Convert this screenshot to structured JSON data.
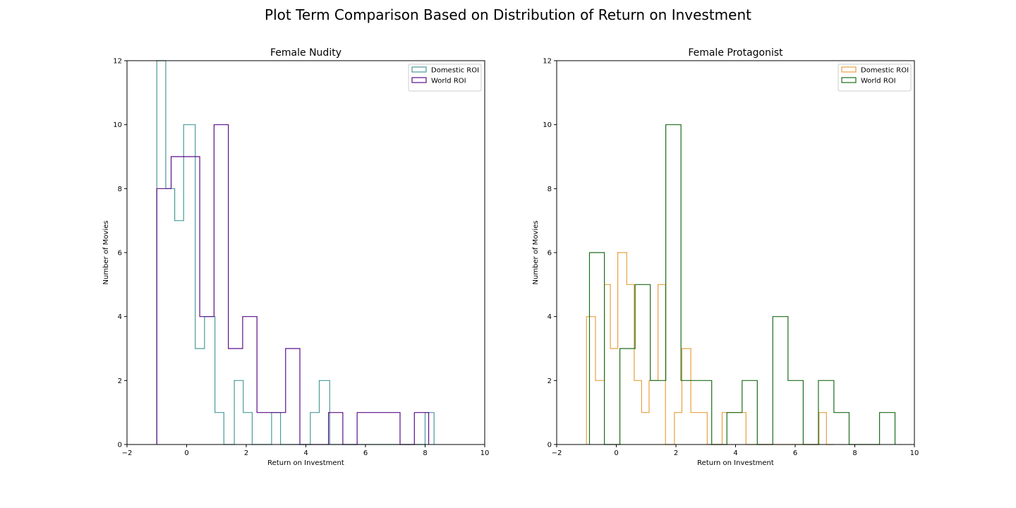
{
  "figure": {
    "suptitle": "Plot Term Comparison Based on Distribution of Return on Investment"
  },
  "chart_data": [
    {
      "type": "histogram",
      "title": "Female Nudity",
      "xlabel": "Return on Investment",
      "ylabel": "Number of Movies",
      "xlim": [
        -2,
        10
      ],
      "ylim": [
        0,
        12
      ],
      "xticks": [
        -2,
        0,
        2,
        4,
        6,
        8,
        10
      ],
      "yticks": [
        0,
        2,
        4,
        6,
        8,
        10,
        12
      ],
      "grid": false,
      "legend_position": "top-right",
      "series": [
        {
          "name": "Domestic ROI",
          "color": "#4a9a9a",
          "histtype": "step",
          "bin_edges": [
            -1.0,
            -0.7,
            -0.4,
            -0.1,
            0.29,
            0.6,
            0.95,
            1.25,
            1.6,
            1.9,
            2.2,
            2.5,
            2.85,
            3.15,
            3.5,
            3.8,
            4.15,
            4.45,
            4.8,
            5.1,
            5.45,
            5.75,
            6.1,
            6.4,
            6.75,
            7.05,
            7.35,
            7.7,
            8.0,
            8.3
          ],
          "counts": [
            12,
            8,
            7,
            10,
            3,
            4,
            1,
            0,
            2,
            1,
            0,
            0,
            1,
            0,
            0,
            0,
            1,
            2,
            0,
            0,
            0,
            0,
            0,
            0,
            0,
            0,
            0,
            0,
            1
          ]
        },
        {
          "name": "World ROI",
          "color": "#5a0f8a",
          "histtype": "step",
          "bin_edges": [
            -1.0,
            -0.52,
            0.44,
            0.92,
            1.4,
            1.88,
            2.36,
            2.84,
            3.32,
            3.8,
            4.28,
            4.76,
            5.24,
            5.72,
            6.2,
            6.68,
            7.16,
            7.64,
            8.12
          ],
          "counts": [
            8,
            9,
            4,
            10,
            3,
            4,
            1,
            1,
            3,
            0,
            0,
            1,
            0,
            1,
            1,
            1,
            0,
            1
          ]
        }
      ]
    },
    {
      "type": "histogram",
      "title": "Female Protagonist",
      "xlabel": "Return on Investment",
      "ylabel": "Number of Movies",
      "xlim": [
        -2,
        10
      ],
      "ylim": [
        0,
        12
      ],
      "xticks": [
        -2,
        0,
        2,
        4,
        6,
        8,
        10
      ],
      "yticks": [
        0,
        2,
        4,
        6,
        8,
        10,
        12
      ],
      "grid": false,
      "legend_position": "top-right",
      "series": [
        {
          "name": "Domestic ROI",
          "color": "#e8a040",
          "histtype": "step",
          "bin_edges": [
            -1.0,
            -0.7,
            -0.4,
            -0.2,
            0.05,
            0.35,
            0.6,
            0.85,
            1.1,
            1.4,
            1.65,
            1.95,
            2.2,
            2.5,
            2.75,
            3.05,
            3.3,
            3.55,
            3.85,
            4.1,
            4.35,
            6.8,
            7.05,
            7.3
          ],
          "counts": [
            4,
            2,
            5,
            3,
            6,
            5,
            2,
            1,
            2,
            5,
            0,
            1,
            3,
            1,
            1,
            0,
            0,
            1,
            1,
            1,
            0,
            1,
            0
          ]
        },
        {
          "name": "World ROI",
          "color": "#1b6e1b",
          "histtype": "step",
          "bin_edges": [
            -0.9,
            -0.4,
            0.12,
            0.63,
            1.14,
            1.66,
            2.17,
            2.68,
            3.2,
            3.71,
            4.22,
            4.73,
            5.25,
            5.76,
            6.27,
            6.78,
            7.3,
            7.81,
            8.32,
            8.83,
            9.35
          ],
          "counts": [
            6,
            0,
            3,
            5,
            2,
            10,
            2,
            2,
            0,
            1,
            2,
            0,
            4,
            2,
            0,
            2,
            1,
            0,
            0,
            1
          ]
        }
      ]
    }
  ]
}
